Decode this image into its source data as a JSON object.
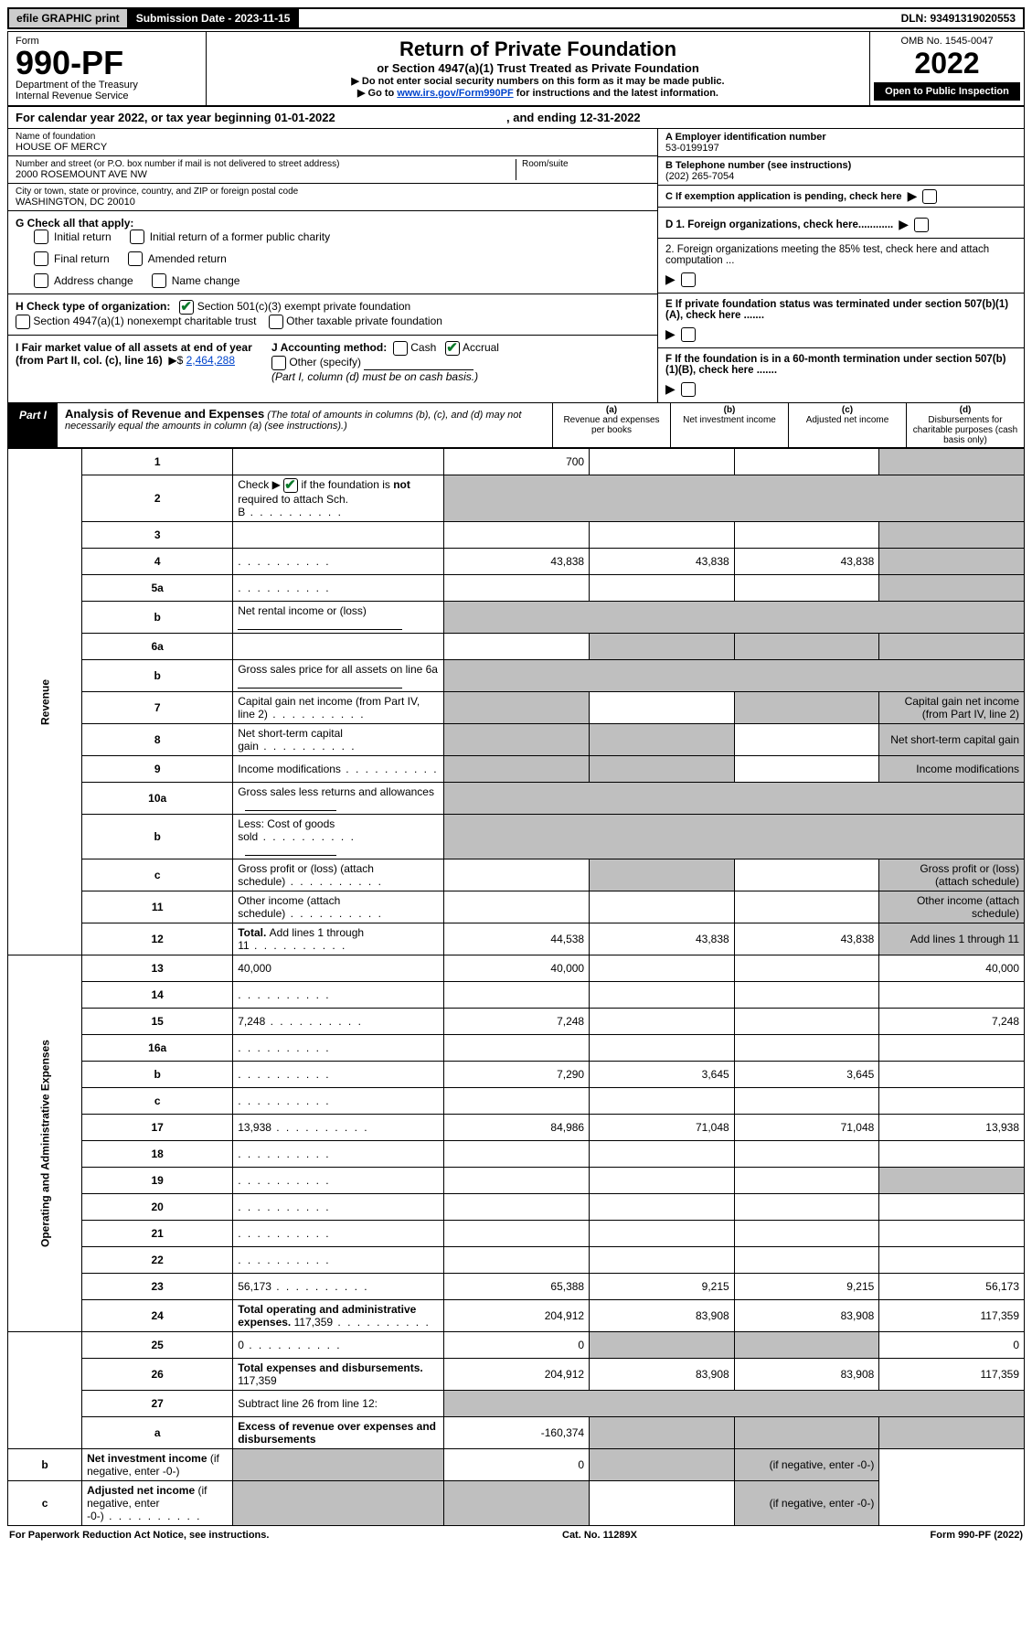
{
  "top_bar": {
    "efile": "efile GRAPHIC print",
    "submission": "Submission Date - 2023-11-15",
    "dln": "DLN: 93491319020553"
  },
  "header": {
    "form_label": "Form",
    "form_number": "990-PF",
    "dept1": "Department of the Treasury",
    "dept2": "Internal Revenue Service",
    "title": "Return of Private Foundation",
    "subtitle": "or Section 4947(a)(1) Trust Treated as Private Foundation",
    "note1": "▶ Do not enter social security numbers on this form as it may be made public.",
    "note2_pre": "▶ Go to ",
    "note2_link": "www.irs.gov/Form990PF",
    "note2_post": " for instructions and the latest information.",
    "omb": "OMB No. 1545-0047",
    "year": "2022",
    "open_public": "Open to Public Inspection"
  },
  "calyear": {
    "text_pre": "For calendar year 2022, or tax year beginning ",
    "begin": "01-01-2022",
    "mid": " , and ending ",
    "end": "12-31-2022"
  },
  "entity": {
    "name_label": "Name of foundation",
    "name": "HOUSE OF MERCY",
    "addr_label": "Number and street (or P.O. box number if mail is not delivered to street address)",
    "addr": "2000 ROSEMOUNT AVE NW",
    "room_label": "Room/suite",
    "city_label": "City or town, state or province, country, and ZIP or foreign postal code",
    "city": "WASHINGTON, DC  20010",
    "a_label": "A Employer identification number",
    "ein": "53-0199197",
    "b_label": "B Telephone number (see instructions)",
    "phone": "(202) 265-7054",
    "c_label": "C If exemption application is pending, check here",
    "d1": "D 1. Foreign organizations, check here............",
    "d2": "2. Foreign organizations meeting the 85% test, check here and attach computation ...",
    "e": "E  If private foundation status was terminated under section 507(b)(1)(A), check here .......",
    "f": "F  If the foundation is in a 60-month termination under section 507(b)(1)(B), check here ......."
  },
  "g": {
    "label": "G Check all that apply:",
    "opts": [
      "Initial return",
      "Initial return of a former public charity",
      "Final return",
      "Amended return",
      "Address change",
      "Name change"
    ]
  },
  "h": {
    "label": "H Check type of organization:",
    "o1": "Section 501(c)(3) exempt private foundation",
    "o2": "Section 4947(a)(1) nonexempt charitable trust",
    "o3": "Other taxable private foundation"
  },
  "i": {
    "label": "I Fair market value of all assets at end of year (from Part II, col. (c), line 16)",
    "arrow": "▶$",
    "value": "2,464,288"
  },
  "j": {
    "label": "J Accounting method:",
    "o1": "Cash",
    "o2": "Accrual",
    "o3": "Other (specify)",
    "note": "(Part I, column (d) must be on cash basis.)"
  },
  "part1": {
    "label": "Part I",
    "title": "Analysis of Revenue and Expenses",
    "subtitle": " (The total of amounts in columns (b), (c), and (d) may not necessarily equal the amounts in column (a) (see instructions).)",
    "cols": {
      "a": "(a)  Revenue and expenses per books",
      "b": "(b)  Net investment income",
      "c": "(c)  Adjusted net income",
      "d": "(d)  Disbursements for charitable purposes (cash basis only)"
    }
  },
  "side_labels": {
    "revenue": "Revenue",
    "expenses": "Operating and Administrative Expenses"
  },
  "rows": [
    {
      "n": "1",
      "d": "",
      "a": "700",
      "b": "",
      "c": "",
      "shade_d": true
    },
    {
      "n": "2",
      "d": "Check ▶ ☑ if the foundation is not required to attach Sch. B",
      "dots": true,
      "shade_all": true
    },
    {
      "n": "3",
      "d": "",
      "a": "",
      "b": "",
      "c": "",
      "shade_d": true
    },
    {
      "n": "4",
      "d": "",
      "dots": true,
      "a": "43,838",
      "b": "43,838",
      "c": "43,838",
      "shade_d": true
    },
    {
      "n": "5a",
      "d": "",
      "dots": true,
      "a": "",
      "b": "",
      "c": "",
      "shade_d": true
    },
    {
      "n": "b",
      "d": "Net rental income or (loss)",
      "underline": true,
      "shade_all": true
    },
    {
      "n": "6a",
      "d": "",
      "a": "",
      "b": "",
      "c": "",
      "shade_b": true,
      "shade_c": true,
      "shade_d": true
    },
    {
      "n": "b",
      "d": "Gross sales price for all assets on line 6a",
      "underline": true,
      "shade_all": true
    },
    {
      "n": "7",
      "d": "Capital gain net income (from Part IV, line 2)",
      "dots": true,
      "shade_a": true,
      "b": "",
      "shade_c": true,
      "shade_d": true
    },
    {
      "n": "8",
      "d": "Net short-term capital gain",
      "dots": true,
      "shade_a": true,
      "shade_b": true,
      "c": "",
      "shade_d": true
    },
    {
      "n": "9",
      "d": "Income modifications",
      "dots": true,
      "shade_a": true,
      "shade_b": true,
      "c": "",
      "shade_d": true
    },
    {
      "n": "10a",
      "d": "Gross sales less returns and allowances",
      "underline_short": true,
      "shade_all": true
    },
    {
      "n": "b",
      "d": "Less: Cost of goods sold",
      "dots": true,
      "underline_short": true,
      "shade_all": true
    },
    {
      "n": "c",
      "d": "Gross profit or (loss) (attach schedule)",
      "dots": true,
      "a": "",
      "shade_b": true,
      "c": "",
      "shade_d": true
    },
    {
      "n": "11",
      "d": "Other income (attach schedule)",
      "dots": true,
      "a": "",
      "b": "",
      "c": "",
      "shade_d": true
    },
    {
      "n": "12",
      "d_bold": "Total. ",
      "d": "Add lines 1 through 11",
      "dots": true,
      "a": "44,538",
      "b": "43,838",
      "c": "43,838",
      "shade_d": true
    },
    {
      "n": "13",
      "d": "40,000",
      "a": "40,000",
      "b": "",
      "c": ""
    },
    {
      "n": "14",
      "d": "",
      "dots": true,
      "a": "",
      "b": "",
      "c": ""
    },
    {
      "n": "15",
      "d": "7,248",
      "dots": true,
      "a": "7,248",
      "b": "",
      "c": ""
    },
    {
      "n": "16a",
      "d": "",
      "dots": true,
      "a": "",
      "b": "",
      "c": ""
    },
    {
      "n": "b",
      "d": "",
      "dots": true,
      "a": "7,290",
      "b": "3,645",
      "c": "3,645"
    },
    {
      "n": "c",
      "d": "",
      "dots": true,
      "a": "",
      "b": "",
      "c": ""
    },
    {
      "n": "17",
      "d": "13,938",
      "dots": true,
      "a": "84,986",
      "b": "71,048",
      "c": "71,048"
    },
    {
      "n": "18",
      "d": "",
      "dots": true,
      "a": "",
      "b": "",
      "c": ""
    },
    {
      "n": "19",
      "d": "",
      "dots": true,
      "a": "",
      "b": "",
      "c": "",
      "shade_d": true
    },
    {
      "n": "20",
      "d": "",
      "dots": true,
      "a": "",
      "b": "",
      "c": ""
    },
    {
      "n": "21",
      "d": "",
      "dots": true,
      "a": "",
      "b": "",
      "c": ""
    },
    {
      "n": "22",
      "d": "",
      "dots": true,
      "a": "",
      "b": "",
      "c": ""
    },
    {
      "n": "23",
      "d": "56,173",
      "dots": true,
      "a": "65,388",
      "b": "9,215",
      "c": "9,215"
    },
    {
      "n": "24",
      "d_bold": "Total operating and administrative expenses. ",
      "d": "117,359",
      "dots": true,
      "a": "204,912",
      "b": "83,908",
      "c": "83,908"
    },
    {
      "n": "25",
      "d": "0",
      "dots": true,
      "a": "0",
      "b": "",
      "c": "",
      "shade_b": true,
      "shade_c": true
    },
    {
      "n": "26",
      "d_bold": "Total expenses and disbursements. ",
      "d": "117,359",
      "a": "204,912",
      "b": "83,908",
      "c": "83,908"
    },
    {
      "n": "27",
      "d": "Subtract line 26 from line 12:",
      "shade_all": true
    },
    {
      "n": "a",
      "d_bold": "Excess of revenue over expenses and disbursements",
      "a": "-160,374",
      "shade_b": true,
      "shade_c": true,
      "shade_d": true
    },
    {
      "n": "b",
      "d_bold": "Net investment income ",
      "d": "(if negative, enter -0-)",
      "shade_a": true,
      "b": "0",
      "shade_c": true,
      "shade_d": true
    },
    {
      "n": "c",
      "d_bold": "Adjusted net income ",
      "d": "(if negative, enter -0-)",
      "dots": true,
      "shade_a": true,
      "shade_b": true,
      "c": "",
      "shade_d": true
    }
  ],
  "footer": {
    "left": "For Paperwork Reduction Act Notice, see instructions.",
    "mid": "Cat. No. 11289X",
    "right": "Form 990-PF (2022)"
  },
  "colors": {
    "shade": "#bfbfbf",
    "link": "#0044cc",
    "check": "#0a7a2a"
  }
}
